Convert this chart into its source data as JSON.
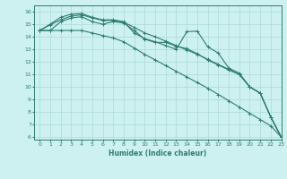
{
  "xlabel": "Humidex (Indice chaleur)",
  "background_color": "#cdf0f0",
  "grid_color": "#aed8d8",
  "line_color": "#2e7d72",
  "xlim": [
    -0.5,
    23
  ],
  "ylim": [
    5.8,
    16.5
  ],
  "xticks": [
    0,
    1,
    2,
    3,
    4,
    5,
    6,
    7,
    8,
    9,
    10,
    11,
    12,
    13,
    14,
    15,
    16,
    17,
    18,
    19,
    20,
    21,
    22,
    23
  ],
  "yticks": [
    6,
    7,
    8,
    9,
    10,
    11,
    12,
    13,
    14,
    15,
    16
  ],
  "lines": [
    [
      14.5,
      15.0,
      15.55,
      15.8,
      15.85,
      15.55,
      15.35,
      15.35,
      15.2,
      14.3,
      13.85,
      13.6,
      13.3,
      13.0,
      14.4,
      14.45,
      13.2,
      12.7,
      11.5,
      11.1,
      10.0,
      9.5,
      7.6,
      6.0
    ],
    [
      14.5,
      14.95,
      15.35,
      15.65,
      15.75,
      15.5,
      15.3,
      15.3,
      15.15,
      14.75,
      14.3,
      14.0,
      13.65,
      13.3,
      12.95,
      12.6,
      12.2,
      11.8,
      11.4,
      11.0,
      10.0,
      9.5,
      7.6,
      6.0
    ],
    [
      14.5,
      14.5,
      15.2,
      15.5,
      15.6,
      15.2,
      15.0,
      15.2,
      15.1,
      14.5,
      13.8,
      13.55,
      13.55,
      13.25,
      13.05,
      12.65,
      12.15,
      11.75,
      11.35,
      11.0,
      10.0,
      9.5,
      7.6,
      6.0
    ],
    [
      14.5,
      14.5,
      14.5,
      14.5,
      14.5,
      14.3,
      14.1,
      13.9,
      13.6,
      13.1,
      12.6,
      12.15,
      11.7,
      11.25,
      10.8,
      10.35,
      9.9,
      9.4,
      8.9,
      8.4,
      7.9,
      7.4,
      6.9,
      6.0
    ]
  ]
}
